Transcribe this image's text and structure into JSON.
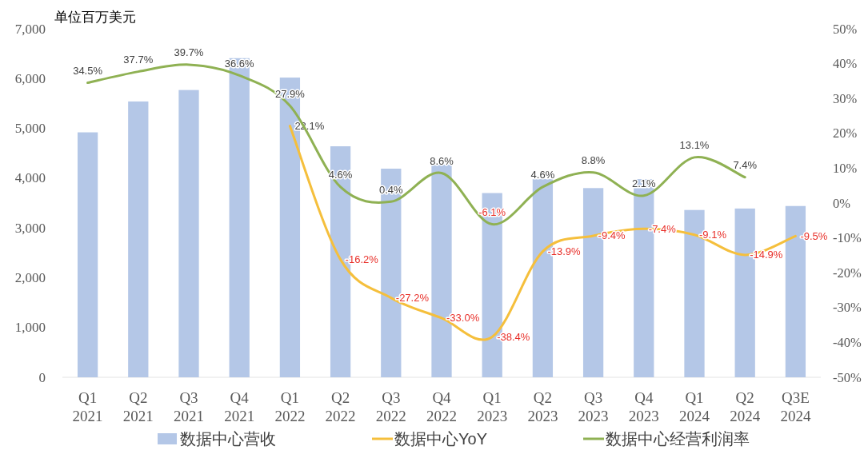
{
  "chart_data": {
    "type": "bar",
    "ylabel": "单位百万美元",
    "categories": [
      "Q1 2021",
      "Q2 2021",
      "Q3 2021",
      "Q4 2021",
      "Q1 2022",
      "Q2 2022",
      "Q3 2022",
      "Q4 2022",
      "Q1 2023",
      "Q2 2023",
      "Q3 2023",
      "Q4 2023",
      "Q1 2024",
      "Q2 2024",
      "Q3E 2024"
    ],
    "series": [
      {
        "name": "数据中心营收",
        "color": "#b4c7e7",
        "values": [
          4920,
          5540,
          5770,
          6410,
          6020,
          4640,
          4190,
          4270,
          3700,
          3980,
          3800,
          3980,
          3360,
          3390,
          3440
        ]
      },
      {
        "name": "数据中心YoY",
        "type": "line",
        "axis": "y2",
        "color": "#f5bf3c",
        "values": [
          null,
          null,
          null,
          null,
          22.1,
          -16.2,
          -27.2,
          -33.0,
          -38.4,
          -13.9,
          -9.4,
          -7.4,
          -9.1,
          -14.9,
          -9.5
        ],
        "value_labels": [
          null,
          null,
          null,
          null,
          "22.1%",
          "-16.2%",
          "-27.2%",
          "-33.0%",
          "-38.4%",
          "-13.9%",
          "-9.4%",
          "-7.4%",
          "-9.1%",
          "-14.9%",
          "-9.5%"
        ]
      },
      {
        "name": "数据中心经营利润率",
        "type": "line",
        "axis": "y2",
        "color": "#8fb153",
        "values": [
          34.5,
          37.7,
          39.7,
          36.6,
          27.9,
          4.6,
          0.4,
          8.6,
          -6.1,
          4.6,
          8.8,
          2.1,
          13.1,
          7.4,
          null
        ],
        "value_labels": [
          "34.5%",
          "37.7%",
          "39.7%",
          "36.6%",
          "27.9%",
          "4.6%",
          "0.4%",
          "8.6%",
          "-6.1%",
          "4.6%",
          "8.8%",
          "2.1%",
          "13.1%",
          "7.4%",
          null
        ]
      }
    ],
    "ylim": [
      0,
      7000
    ],
    "yticks": [
      0,
      {
        "value": 1000,
        "label": "1,000"
      },
      {
        "value": 2000,
        "label": "2,000"
      },
      {
        "value": 3000,
        "label": "3,000"
      },
      {
        "value": 4000,
        "label": "4,000"
      },
      {
        "value": 5000,
        "label": "5,000"
      },
      {
        "value": 6000,
        "label": "6,000"
      },
      {
        "value": 7000,
        "label": "7,000"
      }
    ],
    "y2lim": [
      -50,
      50
    ],
    "y2ticks": [
      {
        "value": -50,
        "label": "-50%"
      },
      {
        "value": -40,
        "label": "-40%"
      },
      {
        "value": -30,
        "label": "-30%"
      },
      {
        "value": -20,
        "label": "-20%"
      },
      {
        "value": -10,
        "label": "-10%"
      },
      {
        "value": 0,
        "label": "0%"
      },
      {
        "value": 10,
        "label": "10%"
      },
      {
        "value": 20,
        "label": "20%"
      },
      {
        "value": 30,
        "label": "30%"
      },
      {
        "value": 40,
        "label": "40%"
      },
      {
        "value": 50,
        "label": "50%"
      }
    ],
    "legend": "bottom"
  }
}
